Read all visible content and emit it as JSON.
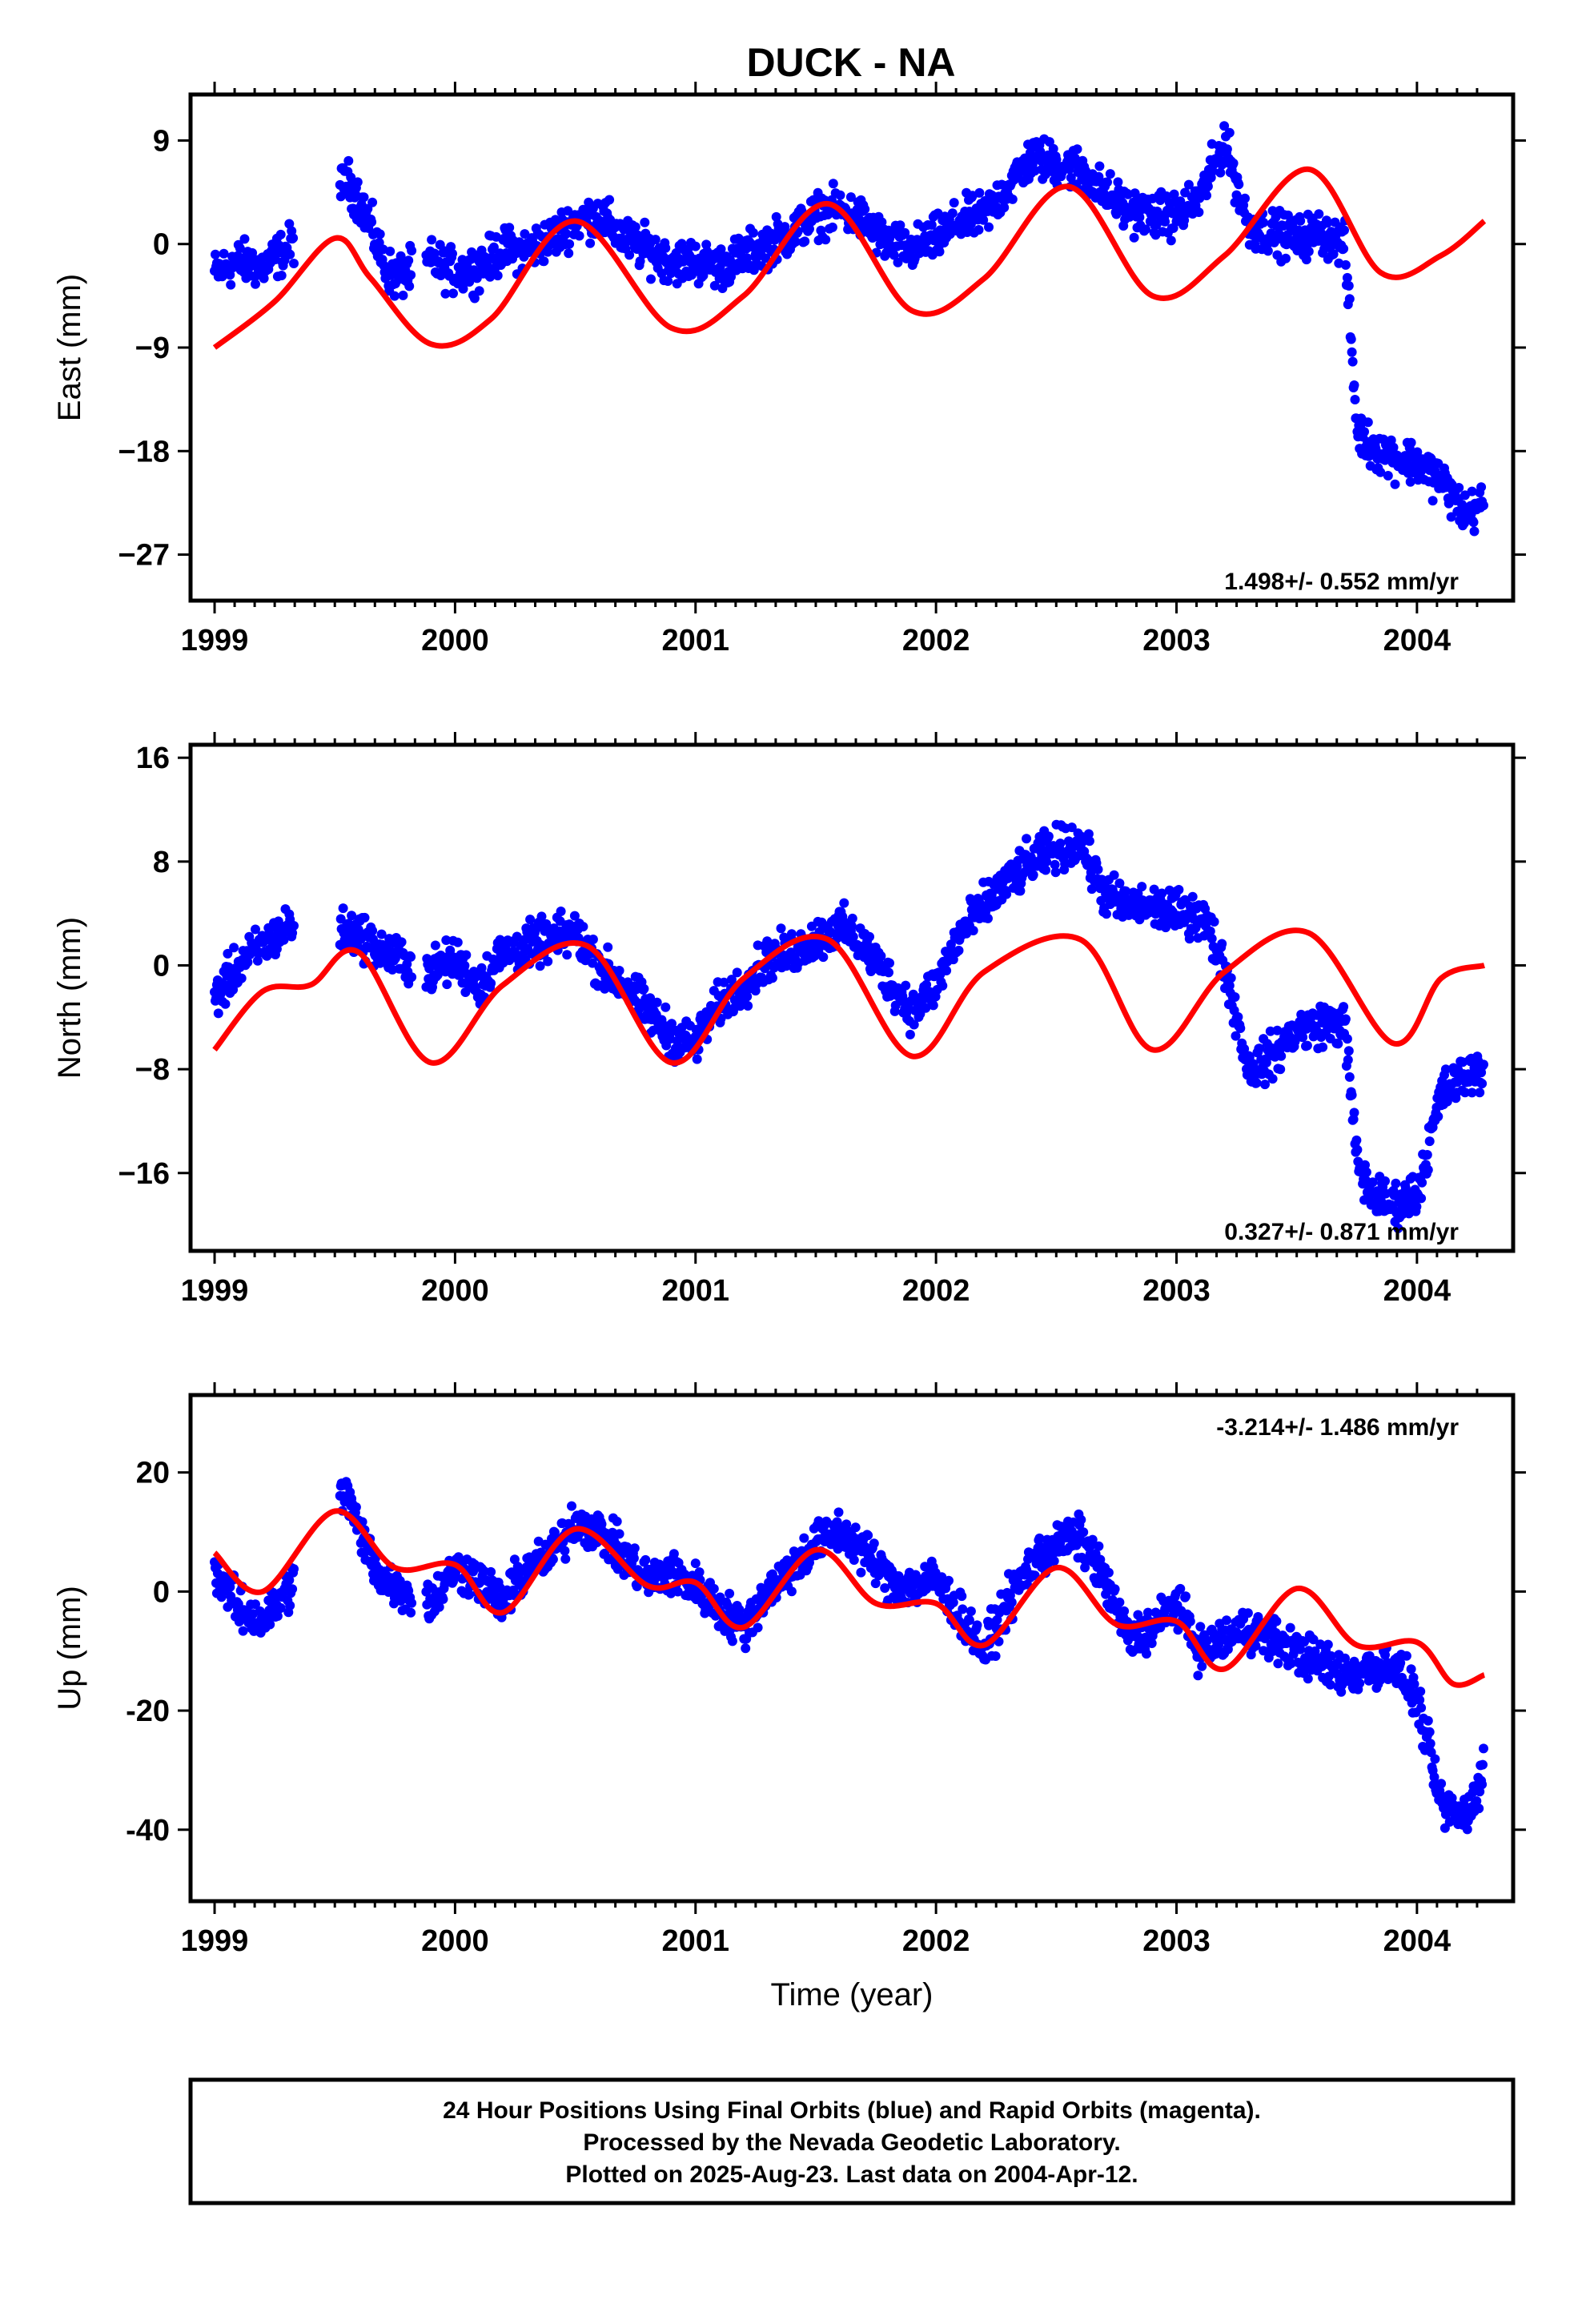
{
  "title": "DUCK - NA",
  "colors": {
    "data_points": "#0000ff",
    "model_curve": "#ff0000",
    "frame": "#000000"
  },
  "footer": {
    "lines": [
      "24 Hour Positions Using Final Orbits (blue) and Rapid Orbits (magenta).",
      "Processed by the Nevada Geodetic Laboratory.",
      "Plotted on 2025-Aug-23. Last data on 2004-Apr-12."
    ]
  },
  "chart_data": [
    {
      "type": "scatter",
      "panel": "east",
      "ylabel": "East (mm)",
      "xlabel": "",
      "xlim": [
        1998.9,
        2004.4
      ],
      "ylim": [
        -31,
        13
      ],
      "x_ticks": [
        1999,
        2000,
        2001,
        2002,
        2003,
        2004
      ],
      "y_ticks": [
        9,
        0,
        -9,
        -18,
        -27
      ],
      "y_tick_labels": [
        "9",
        "0",
        "−9",
        "−18",
        "−27"
      ],
      "rate_text": "1.498+/- 0.552 mm/yr",
      "rate_placement": "bottom-right",
      "series": [
        {
          "kind": "points",
          "x": [
            1999.0,
            1999.1,
            1999.2,
            1999.3,
            1999.55,
            1999.6,
            1999.65,
            1999.7,
            1999.75,
            1999.8,
            1999.9,
            2000.0,
            2000.1,
            2000.2,
            2000.3,
            2000.4,
            2000.5,
            2000.6,
            2000.7,
            2000.8,
            2000.9,
            2001.0,
            2001.1,
            2001.2,
            2001.3,
            2001.4,
            2001.5,
            2001.6,
            2001.7,
            2001.8,
            2001.9,
            2002.0,
            2002.1,
            2002.2,
            2002.3,
            2002.4,
            2002.5,
            2002.6,
            2002.7,
            2002.8,
            2002.9,
            2003.0,
            2003.1,
            2003.2,
            2003.3,
            2003.4,
            2003.5,
            2003.6,
            2003.7,
            2003.75,
            2003.8,
            2003.9,
            2004.0,
            2004.1,
            2004.2,
            2004.28
          ],
          "y": [
            -2.5,
            -1.5,
            -2.0,
            -0.5,
            5.5,
            4.0,
            1.5,
            -1.5,
            -3.0,
            null,
            -1.5,
            -2.5,
            -2.0,
            -0.5,
            -0.5,
            0.5,
            2.0,
            2.5,
            0.5,
            -0.5,
            -1.5,
            -1.5,
            -2.0,
            -1.0,
            0.0,
            1.0,
            2.5,
            3.0,
            2.0,
            0.0,
            -0.5,
            0.5,
            2.0,
            2.5,
            5.0,
            7.5,
            7.0,
            6.5,
            4.5,
            3.0,
            2.5,
            2.5,
            4.0,
            9.0,
            1.5,
            1.0,
            0.5,
            1.0,
            0.0,
            -16.0,
            -17.5,
            -18.5,
            -19.0,
            -20.5,
            -23.5,
            -22.5
          ]
        },
        {
          "kind": "model",
          "x": [
            1999.0,
            1999.25,
            1999.5,
            1999.65,
            1999.9,
            2000.15,
            2000.5,
            2000.9,
            2001.2,
            2001.55,
            2001.9,
            2002.2,
            2002.55,
            2002.9,
            2003.2,
            2003.55,
            2003.85,
            2004.1,
            2004.28
          ],
          "y": [
            -9.0,
            -5.0,
            0.5,
            -3.0,
            -8.7,
            -6.5,
            2.0,
            -7.3,
            -4.5,
            3.5,
            -5.8,
            -3.0,
            5.0,
            -4.5,
            -1.0,
            6.5,
            -2.5,
            -1.0,
            2.0
          ]
        }
      ]
    },
    {
      "type": "scatter",
      "panel": "north",
      "ylabel": "North (mm)",
      "xlabel": "",
      "xlim": [
        1998.9,
        2004.4
      ],
      "ylim": [
        -22,
        17
      ],
      "x_ticks": [
        1999,
        2000,
        2001,
        2002,
        2003,
        2004
      ],
      "y_ticks": [
        16,
        8,
        0,
        -8,
        -16
      ],
      "y_tick_labels": [
        "16",
        "8",
        "0",
        "−8",
        "−16"
      ],
      "rate_text": "0.327+/- 0.871 mm/yr",
      "rate_placement": "bottom-right",
      "series": [
        {
          "kind": "points",
          "x": [
            1999.0,
            1999.1,
            1999.2,
            1999.3,
            1999.6,
            1999.7,
            1999.9,
            2000.0,
            2000.1,
            2000.2,
            2000.3,
            2000.4,
            2000.5,
            2000.6,
            2000.7,
            2000.8,
            2000.9,
            2001.0,
            2001.1,
            2001.2,
            2001.3,
            2001.4,
            2001.5,
            2001.6,
            2001.7,
            2001.8,
            2001.9,
            2002.0,
            2002.1,
            2002.2,
            2002.3,
            2002.4,
            2002.5,
            2002.6,
            2002.7,
            2002.8,
            2002.9,
            2003.0,
            2003.1,
            2003.2,
            2003.3,
            2003.4,
            2003.5,
            2003.6,
            2003.7,
            2003.75,
            2003.8,
            2003.9,
            2004.0,
            2004.1,
            2004.2,
            2004.28
          ],
          "y": [
            -2.5,
            0.0,
            1.5,
            3.0,
            2.5,
            1.0,
            -0.5,
            0.5,
            -1.5,
            1.0,
            1.5,
            2.0,
            2.5,
            0.0,
            -1.5,
            -3.5,
            -5.5,
            -6.0,
            -3.0,
            -1.5,
            0.5,
            1.0,
            2.0,
            3.0,
            1.5,
            -1.0,
            -3.5,
            -1.5,
            2.5,
            4.5,
            6.5,
            8.0,
            9.0,
            9.5,
            5.5,
            4.5,
            4.5,
            4.0,
            4.0,
            0.0,
            -8.0,
            -7.0,
            -5.0,
            -4.5,
            -4.5,
            -15.0,
            -17.5,
            -18.5,
            -17.5,
            -10.0,
            -8.5,
            -8.0
          ]
        },
        {
          "kind": "model",
          "x": [
            1999.0,
            1999.2,
            1999.4,
            1999.6,
            1999.9,
            2000.2,
            2000.55,
            2000.9,
            2001.2,
            2001.55,
            2001.9,
            2002.2,
            2002.6,
            2002.9,
            2003.2,
            2003.55,
            2003.9,
            2004.1,
            2004.28
          ],
          "y": [
            -6.5,
            -2.0,
            -1.5,
            1.0,
            -7.5,
            -1.5,
            1.5,
            -7.5,
            -1.0,
            2.0,
            -7.0,
            -0.5,
            2.0,
            -6.5,
            -0.5,
            2.5,
            -6.0,
            -1.0,
            0.0
          ]
        }
      ]
    },
    {
      "type": "scatter",
      "panel": "up",
      "ylabel": "Up (mm)",
      "xlabel": "Time (year)",
      "xlim": [
        1998.9,
        2004.4
      ],
      "ylim": [
        -52,
        33
      ],
      "x_ticks": [
        1999,
        2000,
        2001,
        2002,
        2003,
        2004
      ],
      "y_ticks": [
        20,
        0,
        -20,
        -40
      ],
      "y_tick_labels": [
        "20",
        "0",
        "-20",
        "-40"
      ],
      "rate_text": "-3.214+/- 1.486 mm/yr",
      "rate_placement": "top-right",
      "series": [
        {
          "kind": "points",
          "x": [
            1999.0,
            1999.1,
            1999.2,
            1999.3,
            1999.55,
            1999.6,
            1999.7,
            1999.8,
            1999.9,
            2000.0,
            2000.1,
            2000.2,
            2000.3,
            2000.4,
            2000.5,
            2000.6,
            2000.7,
            2000.8,
            2000.9,
            2001.0,
            2001.1,
            2001.2,
            2001.3,
            2001.4,
            2001.5,
            2001.6,
            2001.7,
            2001.8,
            2001.9,
            2002.0,
            2002.1,
            2002.2,
            2002.3,
            2002.4,
            2002.5,
            2002.6,
            2002.7,
            2002.8,
            2002.9,
            2003.0,
            2003.1,
            2003.2,
            2003.3,
            2003.4,
            2003.5,
            2003.6,
            2003.7,
            2003.8,
            2003.9,
            2004.0,
            2004.1,
            2004.2,
            2004.28
          ],
          "y": [
            4.0,
            -3.0,
            -5.0,
            0.0,
            17.0,
            10.0,
            2.0,
            0.0,
            -2.0,
            4.0,
            2.0,
            -2.0,
            4.0,
            6.0,
            12.0,
            10.0,
            6.0,
            2.0,
            3.0,
            1.0,
            -3.0,
            -6.0,
            0.0,
            4.0,
            8.0,
            10.0,
            7.0,
            2.0,
            1.0,
            2.0,
            -4.0,
            -10.0,
            -2.0,
            5.0,
            8.0,
            9.0,
            2.0,
            -8.0,
            -6.0,
            -2.0,
            -10.0,
            -8.0,
            -6.0,
            -8.0,
            -10.0,
            -12.0,
            -14.0,
            -13.0,
            -12.0,
            -18.0,
            -36.0,
            -38.0,
            -30.0
          ]
        },
        {
          "kind": "model",
          "x": [
            1999.0,
            1999.2,
            1999.5,
            1999.75,
            2000.0,
            2000.2,
            2000.5,
            2000.8,
            2001.0,
            2001.2,
            2001.5,
            2001.75,
            2002.0,
            2002.2,
            2002.5,
            2002.75,
            2003.0,
            2003.2,
            2003.5,
            2003.75,
            2004.0,
            2004.15,
            2004.28
          ],
          "y": [
            6.5,
            0.0,
            13.5,
            4.0,
            4.5,
            -3.5,
            10.5,
            1.0,
            1.5,
            -6.0,
            7.0,
            -2.0,
            -2.0,
            -9.0,
            4.0,
            -5.5,
            -5.0,
            -13.0,
            0.5,
            -9.0,
            -8.5,
            -15.5,
            -14.0
          ]
        }
      ]
    }
  ]
}
